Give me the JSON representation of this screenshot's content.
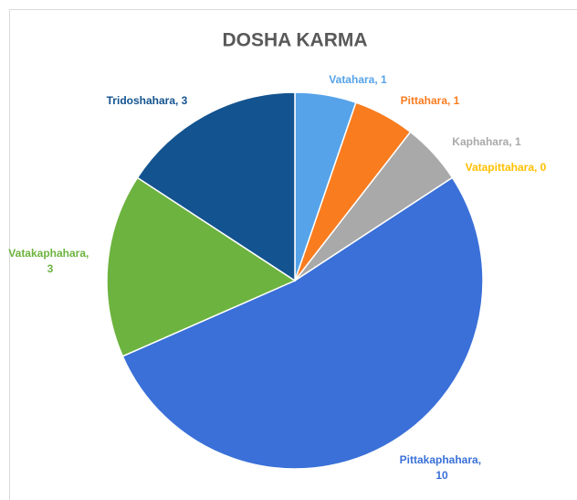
{
  "chart_data": {
    "type": "pie",
    "title": "DOSHA KARMA",
    "categories": [
      "Vatahara",
      "Pittahara",
      "Kaphahara",
      "Vatapittahara",
      "Pittakaphahara",
      "Vatakaphahara",
      "Tridoshahara"
    ],
    "values": [
      1,
      1,
      1,
      0,
      10,
      3,
      3
    ],
    "colors": [
      "#56a3e9",
      "#f97c1f",
      "#a9a9a9",
      "#ffc000",
      "#3a70d8",
      "#6db33f",
      "#13538f"
    ],
    "label_separator": ", "
  }
}
